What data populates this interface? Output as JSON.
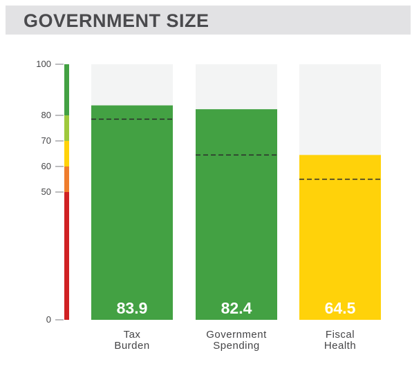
{
  "header": {
    "title": "GOVERNMENT SIZE"
  },
  "chart_data": {
    "type": "bar",
    "title": "GOVERNMENT SIZE",
    "xlabel": "",
    "ylabel": "",
    "ylim": [
      0,
      100
    ],
    "yticks": [
      0,
      50,
      60,
      70,
      80,
      100
    ],
    "categories": [
      [
        "Tax",
        "Burden"
      ],
      [
        "Government",
        "Spending"
      ],
      [
        "Fiscal",
        "Health"
      ]
    ],
    "values": [
      83.9,
      82.4,
      64.5
    ],
    "value_labels": [
      "83.9",
      "82.4",
      "64.5"
    ],
    "reference_values": [
      78.5,
      64.5,
      55.0
    ],
    "bar_colors": [
      "#43a143",
      "#43a143",
      "#ffd20a"
    ],
    "background_track_color": "#f3f4f4",
    "scale_bands": [
      {
        "from": 0,
        "to": 50,
        "color": "#d02123"
      },
      {
        "from": 50,
        "to": 60,
        "color": "#ef7d2d"
      },
      {
        "from": 60,
        "to": 70,
        "color": "#ffd20a"
      },
      {
        "from": 70,
        "to": 80,
        "color": "#9fc93c"
      },
      {
        "from": 80,
        "to": 100,
        "color": "#43a143"
      }
    ]
  }
}
